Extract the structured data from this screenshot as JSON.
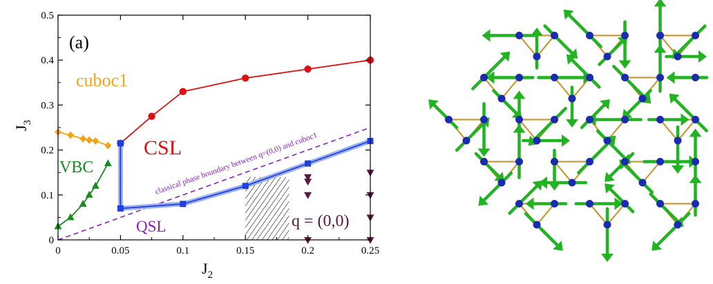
{
  "chart_data": {
    "type": "scatter",
    "panel_label": "(a)",
    "xlabel": "J",
    "xlabel_sub": "2",
    "ylabel": "J",
    "ylabel_sub": "3",
    "xlim": [
      0,
      0.25
    ],
    "ylim": [
      0,
      0.5
    ],
    "x_ticks": [
      "0",
      "0.05",
      "0.1",
      "0.15",
      "0.2",
      "0.25"
    ],
    "x_tick_values": [
      0,
      0.05,
      0.1,
      0.15,
      0.2,
      0.25
    ],
    "y_ticks": [
      "0",
      "0.1",
      "0.2",
      "0.3",
      "0.4",
      "0.5"
    ],
    "y_tick_values": [
      0,
      0.1,
      0.2,
      0.3,
      0.4,
      0.5
    ],
    "series": [
      {
        "name": "CSL",
        "color": "#dd1111",
        "marker": "circle",
        "x": [
          0.05,
          0.075,
          0.1,
          0.15,
          0.2,
          0.25
        ],
        "y": [
          0.215,
          0.275,
          0.33,
          0.36,
          0.38,
          0.4
        ]
      },
      {
        "name": "QSL",
        "color": "#1f3fe0",
        "marker": "square",
        "x": [
          0.05,
          0.05,
          0.1,
          0.15,
          0.2,
          0.25
        ],
        "y": [
          0.215,
          0.07,
          0.08,
          0.12,
          0.17,
          0.22
        ]
      },
      {
        "name": "cuboc1",
        "color": "#f5a418",
        "marker": "diamond",
        "x": [
          0,
          0.01,
          0.02,
          0.025,
          0.03,
          0.04
        ],
        "y": [
          0.24,
          0.233,
          0.225,
          0.222,
          0.22,
          0.21
        ]
      },
      {
        "name": "VBC",
        "color": "#1a8a22",
        "marker": "triangle-up",
        "x": [
          0,
          0.01,
          0.02,
          0.025,
          0.03,
          0.04
        ],
        "y": [
          0.03,
          0.05,
          0.08,
          0.1,
          0.12,
          0.17
        ]
      },
      {
        "name": "q = (0,0)",
        "color": "#5b1840",
        "marker": "triangle-down",
        "x": [
          0.2,
          0.2,
          0.2,
          0.2,
          0.25,
          0.25,
          0.25,
          0.25
        ],
        "y": [
          0.14,
          0.13,
          0.1,
          0,
          0.15,
          0.1,
          0.05,
          0
        ]
      }
    ],
    "dashed_line": {
      "label": "classical phase boundary between q=(0,0) and cuboc1",
      "color": "#8b1fc4",
      "x": [
        0,
        0.25
      ],
      "y": [
        0,
        0.25
      ]
    },
    "hatched_region": {
      "x": [
        0.15,
        0.185
      ],
      "y": [
        0,
        0.14
      ]
    },
    "phase_labels": [
      {
        "text": "cuboc1",
        "color": "#f5a418"
      },
      {
        "text": "CSL",
        "color": "#dd1111"
      },
      {
        "text": "VBC",
        "color": "#1a8a22"
      },
      {
        "text": "QSL",
        "color": "#8b1fc4"
      },
      {
        "text": "q = (0,0)",
        "color": "#5b1840"
      }
    ]
  },
  "lattice_figure": {
    "site_color": "#1a2bb0",
    "bond_color": "#c89a3a",
    "arrow_color": "#22b322",
    "icon": "kagome-spin-texture"
  }
}
